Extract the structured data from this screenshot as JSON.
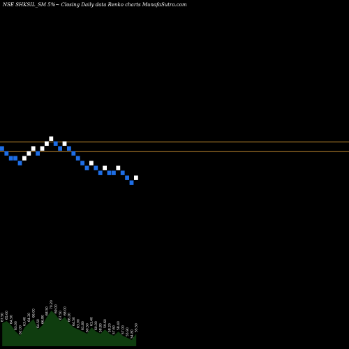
{
  "chart_data": {
    "type": "renko",
    "title": "NSE SHKSIL_SM 5%~   Closing Daily data  Renko  charts MunafaSutra.com",
    "colors": {
      "background": "#000000",
      "up_brick": "#ffffff",
      "down_brick": "#1e6ee6",
      "reference_line": "#c08a30",
      "volume_fill": "#0f3d0f",
      "volume_text": "#ffffff"
    },
    "bricks": [
      {
        "level": 4,
        "dir": "down"
      },
      {
        "level": 3,
        "dir": "down"
      },
      {
        "level": 2,
        "dir": "down"
      },
      {
        "level": 2,
        "dir": "down"
      },
      {
        "level": 1,
        "dir": "down"
      },
      {
        "level": 2,
        "dir": "up"
      },
      {
        "level": 3,
        "dir": "up"
      },
      {
        "level": 4,
        "dir": "up"
      },
      {
        "level": 3,
        "dir": "down"
      },
      {
        "level": 4,
        "dir": "up"
      },
      {
        "level": 5,
        "dir": "up"
      },
      {
        "level": 6,
        "dir": "up"
      },
      {
        "level": 5,
        "dir": "down"
      },
      {
        "level": 4,
        "dir": "down"
      },
      {
        "level": 5,
        "dir": "up"
      },
      {
        "level": 4,
        "dir": "down"
      },
      {
        "level": 3,
        "dir": "down"
      },
      {
        "level": 2,
        "dir": "down"
      },
      {
        "level": 1,
        "dir": "down"
      },
      {
        "level": 0,
        "dir": "down"
      },
      {
        "level": 1,
        "dir": "up"
      },
      {
        "level": 0,
        "dir": "down"
      },
      {
        "level": -1,
        "dir": "down"
      },
      {
        "level": 0,
        "dir": "up"
      },
      {
        "level": -1,
        "dir": "down"
      },
      {
        "level": -1,
        "dir": "down"
      },
      {
        "level": 0,
        "dir": "up"
      },
      {
        "level": -1,
        "dir": "down"
      },
      {
        "level": -2,
        "dir": "down"
      },
      {
        "level": -3,
        "dir": "down"
      },
      {
        "level": -2,
        "dir": "up"
      }
    ],
    "reference_lines": [
      {
        "level": 5.4
      },
      {
        "level": 3.4
      }
    ],
    "volume": [
      {
        "value": 0.55,
        "label": "67.50"
      },
      {
        "value": 0.6,
        "label": "65.00"
      },
      {
        "value": 0.5,
        "label": "64.50"
      },
      {
        "value": 0.35,
        "label": "63.00"
      },
      {
        "value": 0.25,
        "label": "62.00"
      },
      {
        "value": 0.45,
        "label": "63.40"
      },
      {
        "value": 0.55,
        "label": "64.20"
      },
      {
        "value": 0.65,
        "label": "66.00"
      },
      {
        "value": 0.4,
        "label": "64.50"
      },
      {
        "value": 0.5,
        "label": "66.80"
      },
      {
        "value": 0.7,
        "label": "68.50"
      },
      {
        "value": 0.85,
        "label": "70.20"
      },
      {
        "value": 0.75,
        "label": "69.00"
      },
      {
        "value": 0.6,
        "label": "67.50"
      },
      {
        "value": 0.7,
        "label": "68.00"
      },
      {
        "value": 0.55,
        "label": "66.20"
      },
      {
        "value": 0.45,
        "label": "64.50"
      },
      {
        "value": 0.4,
        "label": "63.00"
      },
      {
        "value": 0.35,
        "label": "61.80"
      },
      {
        "value": 0.3,
        "label": "60.50"
      },
      {
        "value": 0.45,
        "label": "61.40"
      },
      {
        "value": 0.35,
        "label": "60.00"
      },
      {
        "value": 0.3,
        "label": "58.80"
      },
      {
        "value": 0.4,
        "label": "59.60"
      },
      {
        "value": 0.3,
        "label": "58.20"
      },
      {
        "value": 0.25,
        "label": "57.60"
      },
      {
        "value": 0.35,
        "label": "58.40"
      },
      {
        "value": 0.25,
        "label": "57.00"
      },
      {
        "value": 0.2,
        "label": "55.90"
      },
      {
        "value": 0.15,
        "label": "54.80"
      },
      {
        "value": 0.3,
        "label": "55.50"
      }
    ]
  }
}
